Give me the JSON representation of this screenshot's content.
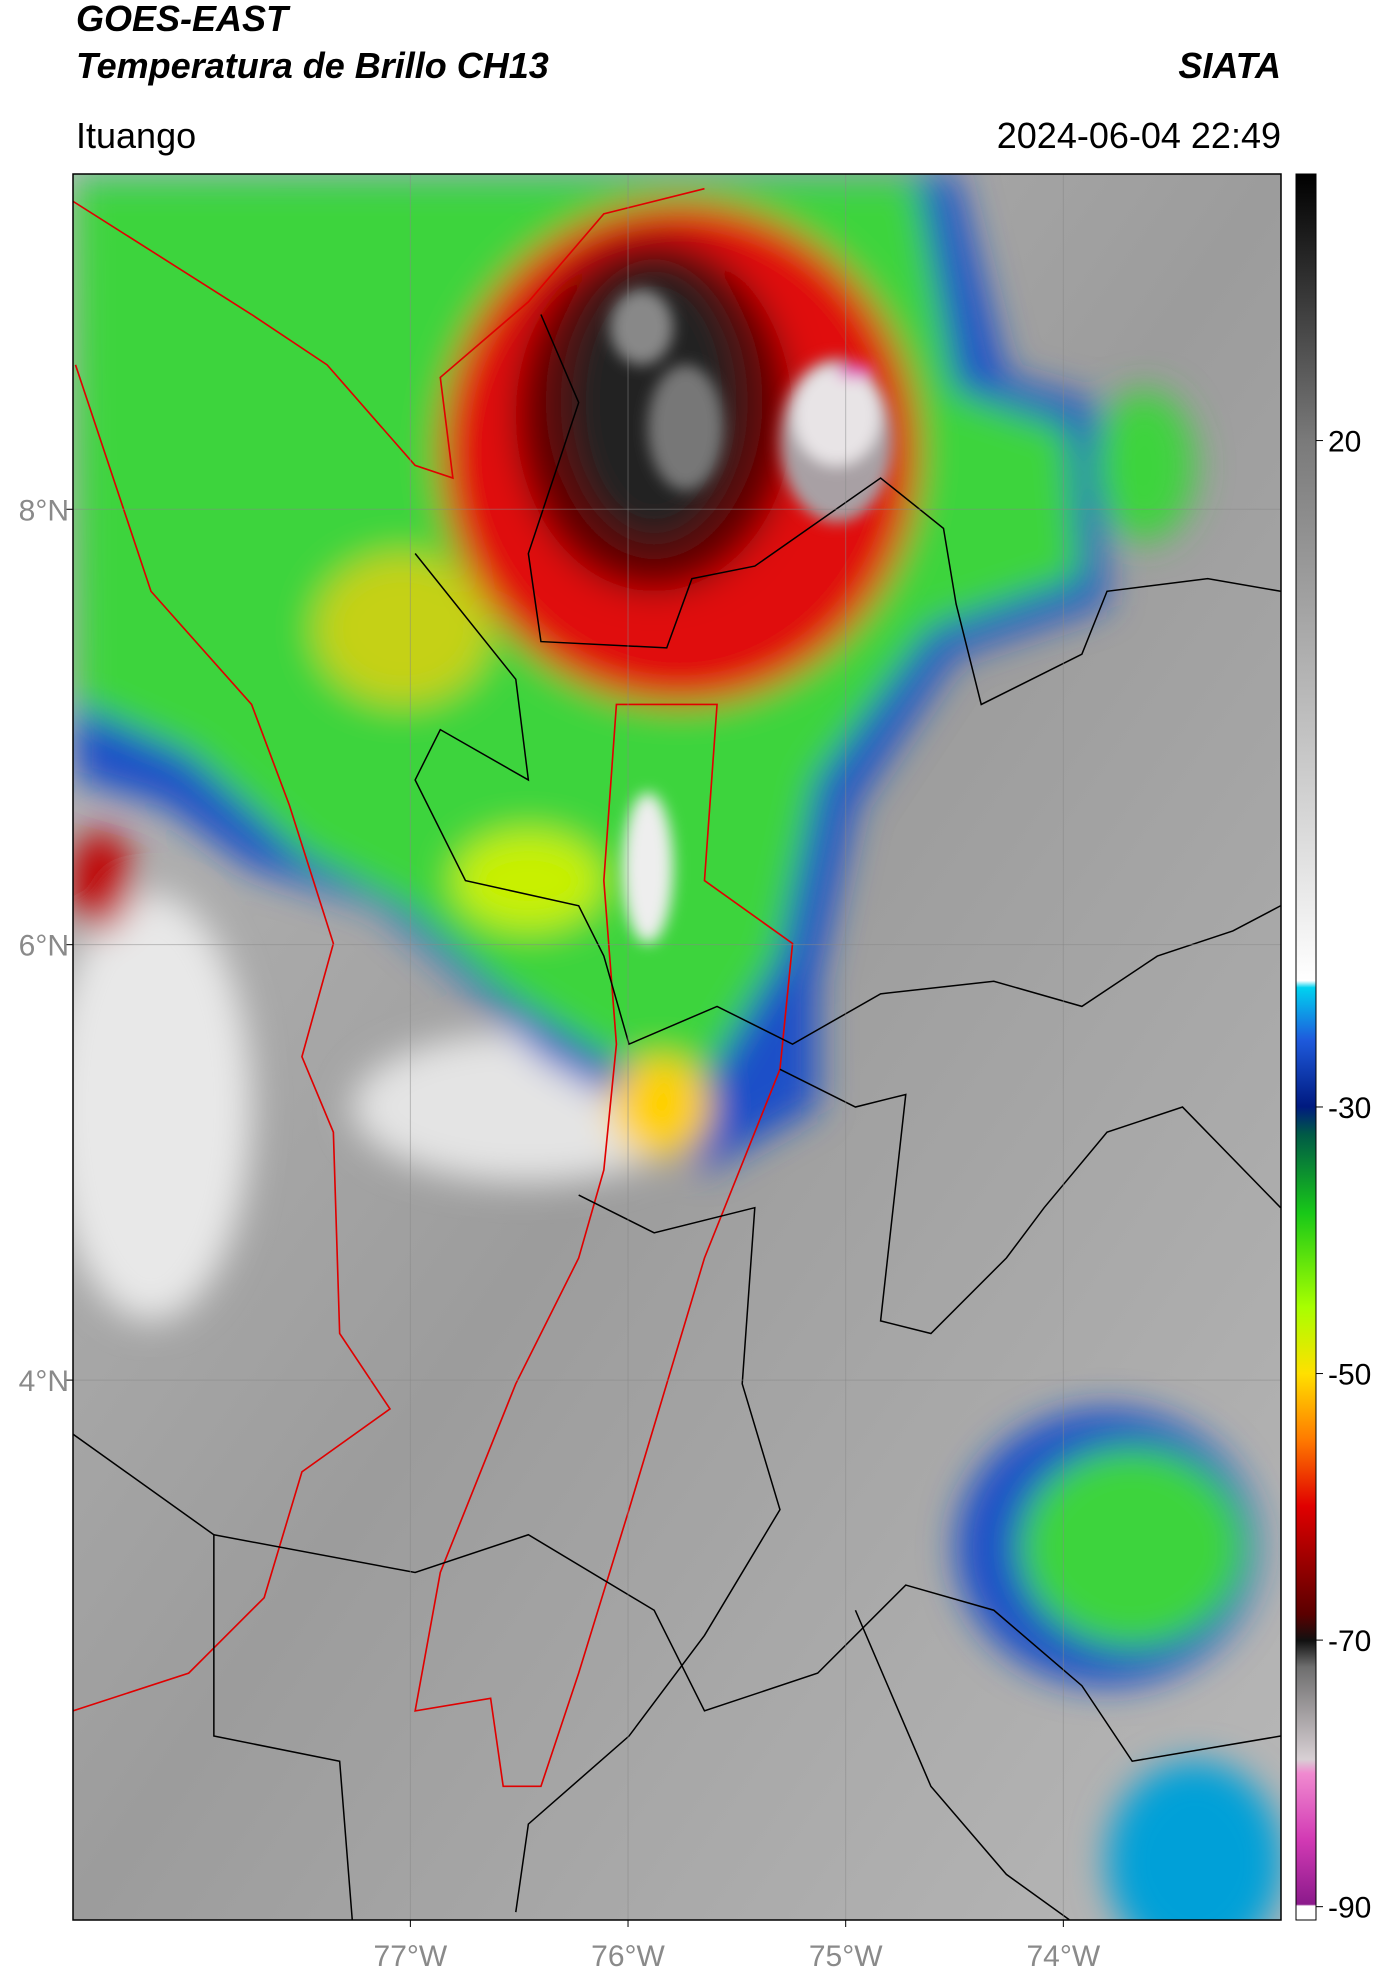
{
  "header": {
    "title": "GOES-EAST",
    "subtitle": "Temperatura de Brillo CH13",
    "source": "SIATA",
    "location": "Ituango",
    "datetime": "2024-06-04 22:49"
  },
  "map": {
    "lonlim": [
      -78.55,
      -73.0
    ],
    "latlim": [
      1.52,
      9.54
    ],
    "lonticks": [
      {
        "value": -77,
        "label": "77°W"
      },
      {
        "value": -76,
        "label": "76°W"
      },
      {
        "value": -75,
        "label": "75°W"
      },
      {
        "value": -74,
        "label": "74°W"
      }
    ],
    "latticks": [
      {
        "value": 8,
        "label": "8°N"
      },
      {
        "value": 6,
        "label": "6°N"
      },
      {
        "value": 4,
        "label": "4°N"
      }
    ]
  },
  "colorbar": {
    "lim": [
      -91,
      40
    ],
    "ticks": [
      -90,
      -70,
      -50,
      -30,
      20
    ]
  }
}
